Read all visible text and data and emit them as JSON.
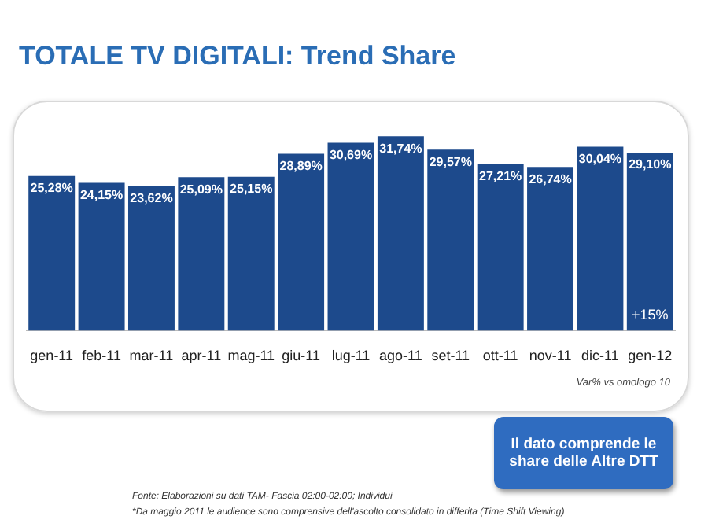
{
  "chart_data": {
    "type": "bar",
    "title": "TOTALE TV DIGITALI: Trend Share",
    "categories": [
      "gen-11",
      "feb-11",
      "mar-11",
      "apr-11",
      "mag-11",
      "giu-11",
      "lug-11",
      "ago-11",
      "set-11",
      "ott-11",
      "nov-11",
      "dic-11",
      "gen-12"
    ],
    "values": [
      25.28,
      24.15,
      23.62,
      25.09,
      25.15,
      28.89,
      30.69,
      31.74,
      29.57,
      27.21,
      26.74,
      30.04,
      29.1
    ],
    "value_labels": [
      "25,28%",
      "24,15%",
      "23,62%",
      "25,09%",
      "25,15%",
      "28,89%",
      "30,69%",
      "31,74%",
      "29,57%",
      "27,21%",
      "26,74%",
      "30,04%",
      "29,10%"
    ],
    "color": "#1d4a8c",
    "annotations": [
      "+15%",
      "Var% vs omologo 10",
      "Il dato comprende le share delle Altre DTT",
      "Fonte: Elaborazioni su dati TAM- Fascia 02:00-02:00; Individui",
      "*Da maggio 2011 le audience sono comprensive dell'ascolto consolidato in differita (Time Shift Viewing)"
    ]
  }
}
